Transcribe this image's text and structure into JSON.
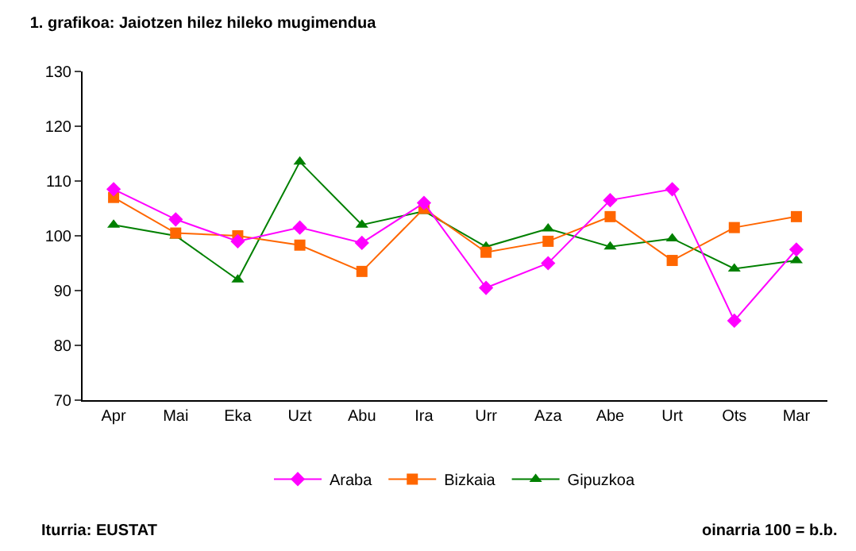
{
  "chart_data": {
    "type": "line",
    "title": "1. grafikoa: Jaiotzen hilez hileko mugimendua",
    "categories": [
      "Apr",
      "Mai",
      "Eka",
      "Uzt",
      "Abu",
      "Ira",
      "Urr",
      "Aza",
      "Abe",
      "Urt",
      "Ots",
      "Mar"
    ],
    "series": [
      {
        "name": "Araba",
        "color": "#ff00ff",
        "marker": "diamond",
        "values": [
          108.5,
          103,
          99,
          101.5,
          98.7,
          106,
          90.5,
          95,
          106.5,
          108.5,
          84.5,
          97.5
        ]
      },
      {
        "name": "Bizkaia",
        "color": "#ff6600",
        "marker": "square",
        "values": [
          107,
          100.5,
          100,
          98.3,
          93.5,
          105,
          97,
          99,
          103.5,
          95.5,
          101.5,
          103.5
        ]
      },
      {
        "name": "Gipuzkoa",
        "color": "#008000",
        "marker": "triangle",
        "values": [
          102,
          100,
          92,
          113.5,
          102,
          104.5,
          98,
          101.3,
          98,
          99.5,
          94,
          95.5
        ]
      }
    ],
    "ylim": [
      70,
      130
    ],
    "yticks": [
      70,
      80,
      90,
      100,
      110,
      120,
      130
    ],
    "grid": false,
    "legend": "bottom",
    "line_style": "solid",
    "annotations": [
      "Iturria: EUSTAT",
      "oinarria 100 = b.b."
    ]
  }
}
